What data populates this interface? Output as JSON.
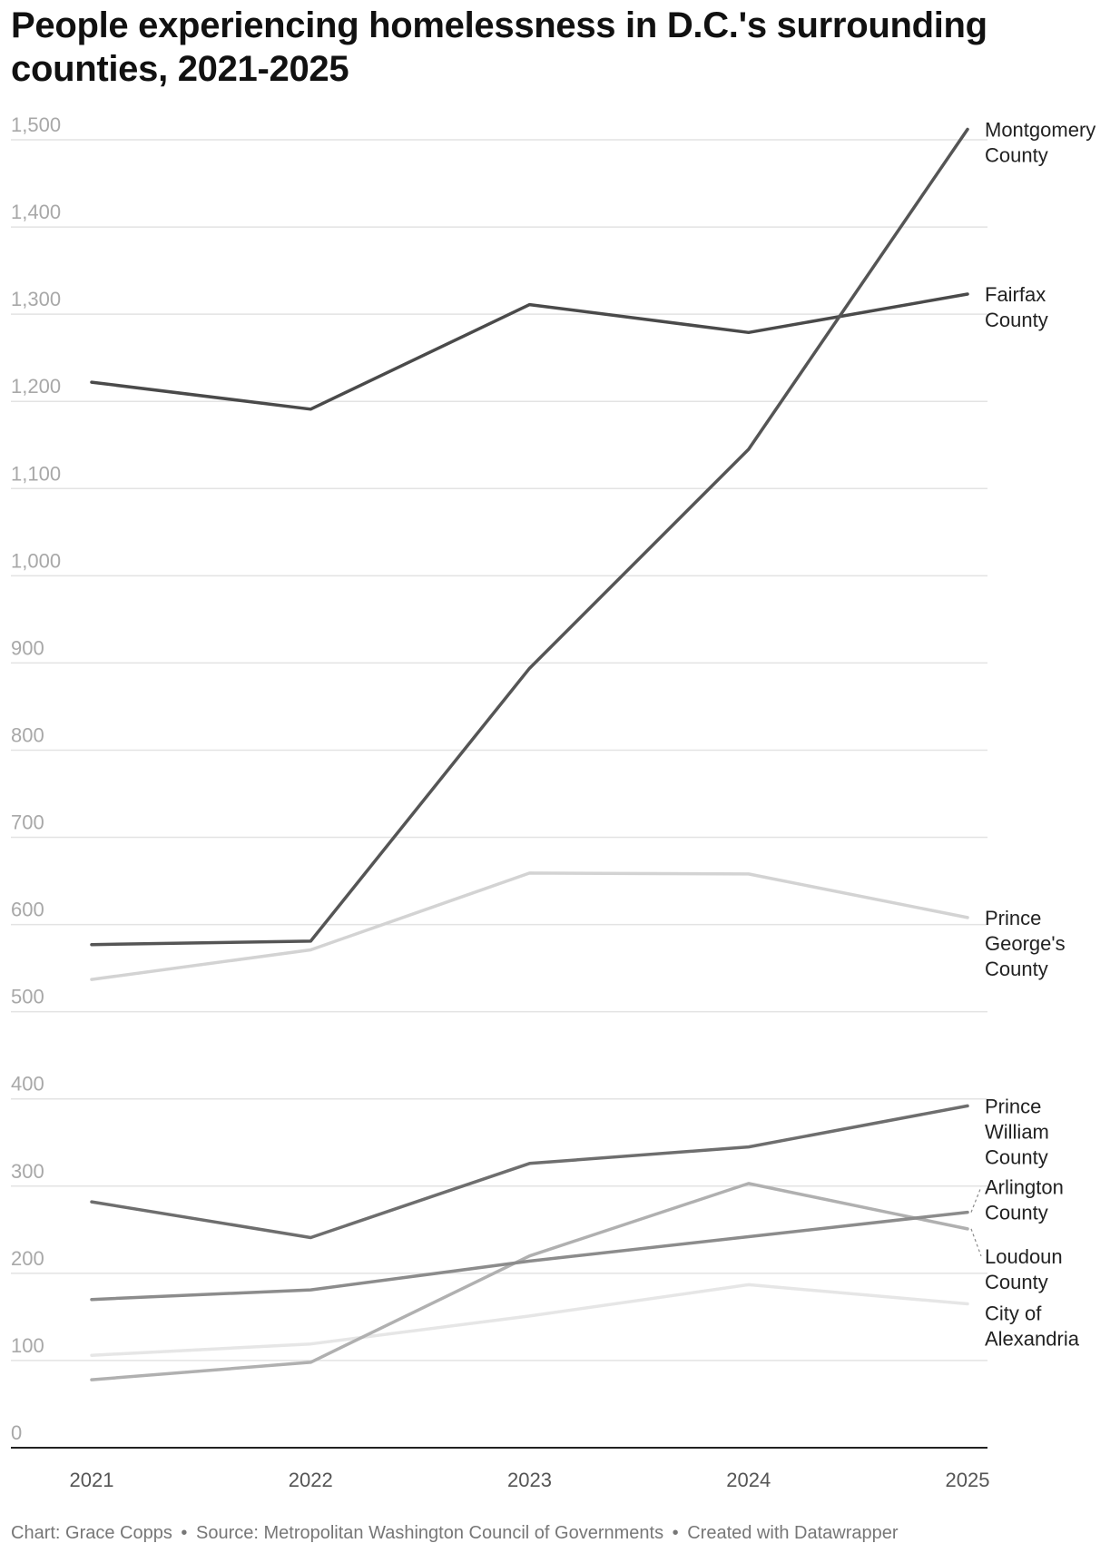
{
  "title": "People experiencing homelessness in D.C.'s surrounding counties, 2021-2025",
  "footer": {
    "chart_credit": "Chart: Grace Copps",
    "source": "Source: Metropolitan Washington Council of Governments",
    "tool": "Created with Datawrapper",
    "separator": "•"
  },
  "chart_data": {
    "type": "line",
    "title": "People experiencing homelessness in D.C.'s surrounding counties, 2021-2025",
    "xlabel": "",
    "ylabel": "",
    "x": [
      "2021",
      "2022",
      "2023",
      "2024",
      "2025"
    ],
    "ylim": [
      0,
      1500
    ],
    "yticks": [
      0,
      100,
      200,
      300,
      400,
      500,
      600,
      700,
      800,
      900,
      1000,
      1100,
      1200,
      1300,
      1400,
      1500
    ],
    "ytick_labels": [
      "0",
      "100",
      "200",
      "300",
      "400",
      "500",
      "600",
      "700",
      "800",
      "900",
      "1,000",
      "1,100",
      "1,200",
      "1,300",
      "1,400",
      "1,500"
    ],
    "grid": true,
    "series": [
      {
        "name": "Montgomery County",
        "label_lines": [
          "Montgomery",
          "County"
        ],
        "color": "#555555",
        "values": [
          577,
          581,
          894,
          1145,
          1512
        ]
      },
      {
        "name": "Fairfax County",
        "label_lines": [
          "Fairfax",
          "County"
        ],
        "color": "#4a4a4a",
        "values": [
          1222,
          1191,
          1311,
          1279,
          1323
        ]
      },
      {
        "name": "Prince George's County",
        "label_lines": [
          "Prince",
          "George's",
          "County"
        ],
        "color": "#d3d3d3",
        "values": [
          537,
          571,
          659,
          658,
          608
        ]
      },
      {
        "name": "Prince William County",
        "label_lines": [
          "Prince",
          "William",
          "County"
        ],
        "color": "#6e6e6e",
        "values": [
          282,
          241,
          326,
          345,
          392
        ]
      },
      {
        "name": "Arlington County",
        "label_lines": [
          "Arlington",
          "County"
        ],
        "color": "#8c8c8c",
        "values": [
          170,
          181,
          214,
          242,
          270
        ]
      },
      {
        "name": "Loudoun County",
        "label_lines": [
          "Loudoun",
          "County"
        ],
        "color": "#b0b0b0",
        "values": [
          78,
          98,
          220,
          303,
          251
        ]
      },
      {
        "name": "City of Alexandria",
        "label_lines": [
          "City of",
          "Alexandria"
        ],
        "color": "#e6e6e6",
        "values": [
          106,
          119,
          151,
          187,
          165
        ]
      }
    ]
  }
}
